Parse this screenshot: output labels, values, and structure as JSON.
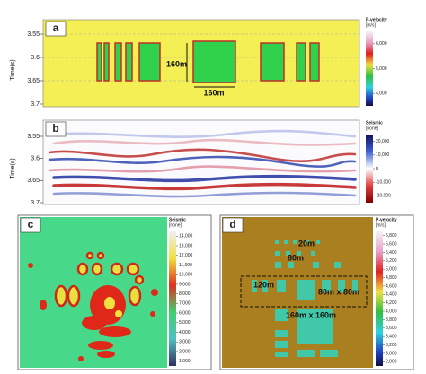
{
  "panels": [
    {
      "label": "a",
      "y_axis_label": "Time(s)",
      "yticks": [
        "3.55",
        "3.6",
        "3.65",
        "3.7"
      ],
      "colorbar": {
        "title": "P-velocity",
        "unit": "[m/s]",
        "ticks": [
          "6,000",
          "5,000",
          "4,000"
        ]
      },
      "annotations": [
        "160m",
        "160m"
      ]
    },
    {
      "label": "b",
      "y_axis_label": "Time(s)",
      "yticks": [
        "3.55",
        "3.6",
        "3.65",
        "3.7"
      ],
      "colorbar": {
        "title": "Seismic",
        "unit": "[none]",
        "ticks": [
          "20,000",
          "10,000",
          "0",
          "-10,000",
          "-20,000"
        ]
      }
    },
    {
      "label": "c",
      "colorbar": {
        "title": "Seismic",
        "unit": "[none]",
        "ticks": [
          "14,000",
          "13,000",
          "12,000",
          "11,000",
          "10,000",
          "9,000",
          "8,000",
          "7,000",
          "6,000",
          "5,000",
          "4,000",
          "3,000",
          "2,000",
          "1,000"
        ]
      }
    },
    {
      "label": "d",
      "colorbar": {
        "title": "P-velocity",
        "unit": "[m/s]",
        "ticks": [
          "5,800",
          "5,600",
          "5,400",
          "5,200",
          "5,000",
          "4,800",
          "4,600",
          "4,400",
          "4,200",
          "4,000",
          "3,800",
          "3,600",
          "3,400",
          "3,200",
          "3,000",
          "2,800"
        ]
      },
      "annotations": [
        "20m",
        "80m",
        "120m",
        "80m x 80m",
        "160m x 160m"
      ]
    }
  ]
}
